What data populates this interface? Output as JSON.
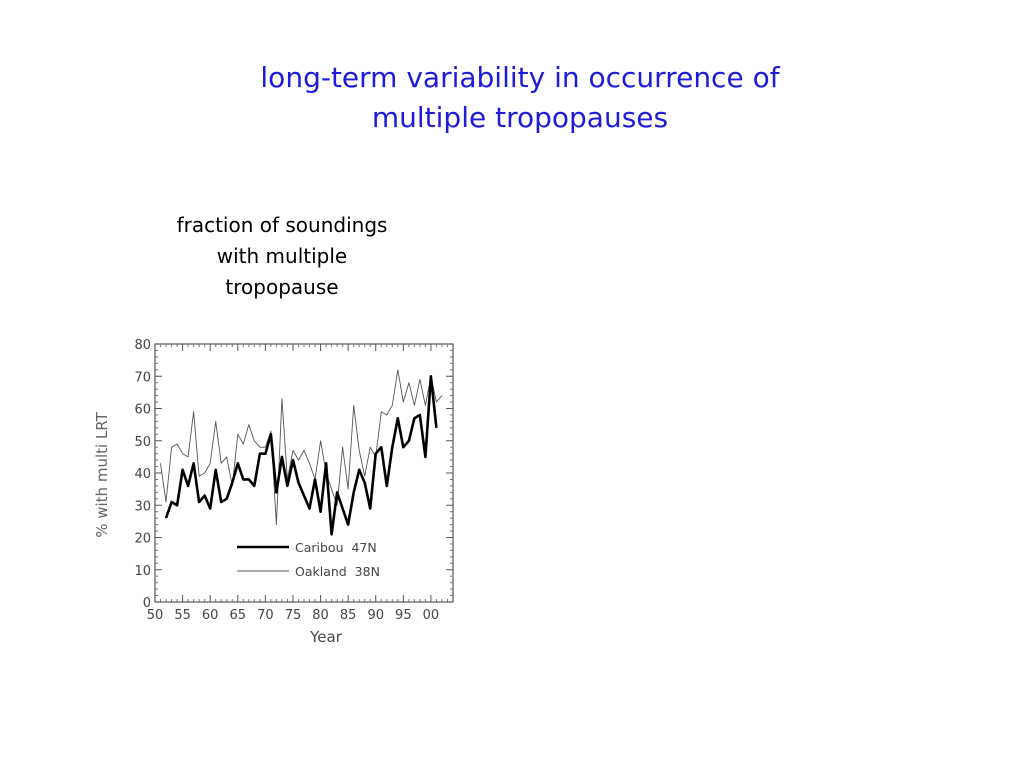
{
  "slide": {
    "title_line1": "long-term variability in occurrence of",
    "title_line2": "multiple tropopauses",
    "caption_line1": "fraction of soundings",
    "caption_line2": "with multiple",
    "caption_line3": "tropopause"
  },
  "chart_data": {
    "type": "line",
    "title": "",
    "xlabel": "Year",
    "ylabel": "% with multi LRT",
    "xlim": [
      1950,
      2004
    ],
    "ylim": [
      0,
      80
    ],
    "x_ticks": [
      1950,
      1955,
      1960,
      1965,
      1970,
      1975,
      1980,
      1985,
      1990,
      1995,
      2000
    ],
    "x_tick_labels": [
      "50",
      "55",
      "60",
      "65",
      "70",
      "75",
      "80",
      "85",
      "90",
      "95",
      "00"
    ],
    "y_ticks": [
      0,
      10,
      20,
      30,
      40,
      50,
      60,
      70,
      80
    ],
    "y_tick_labels": [
      "0",
      "10",
      "20",
      "30",
      "40",
      "50",
      "60",
      "70",
      "80"
    ],
    "legend_position": "bottom-center",
    "grid": false,
    "series": [
      {
        "name": "Caribou  47N",
        "color": "#000000",
        "style": "thick",
        "x": [
          1952,
          1953,
          1954,
          1955,
          1956,
          1957,
          1958,
          1959,
          1960,
          1961,
          1962,
          1963,
          1964,
          1965,
          1966,
          1967,
          1968,
          1969,
          1970,
          1971,
          1972,
          1973,
          1974,
          1975,
          1976,
          1977,
          1978,
          1979,
          1980,
          1981,
          1982,
          1983,
          1984,
          1985,
          1986,
          1987,
          1988,
          1989,
          1990,
          1991,
          1992,
          1993,
          1994,
          1995,
          1996,
          1997,
          1998,
          1999,
          2000,
          2001
        ],
        "values": [
          26,
          31,
          30,
          41,
          36,
          43,
          31,
          33,
          29,
          41,
          31,
          32,
          37,
          43,
          38,
          38,
          36,
          46,
          46,
          52,
          34,
          45,
          36,
          44,
          37,
          33,
          29,
          38,
          28,
          43,
          21,
          34,
          29,
          24,
          34,
          41,
          37,
          29,
          46,
          48,
          36,
          48,
          57,
          48,
          50,
          57,
          58,
          45,
          70,
          54
        ]
      },
      {
        "name": "Oakland  38N",
        "color": "#555555",
        "style": "thin",
        "x": [
          1951,
          1952,
          1953,
          1954,
          1955,
          1956,
          1957,
          1958,
          1959,
          1960,
          1961,
          1962,
          1963,
          1964,
          1965,
          1966,
          1967,
          1968,
          1969,
          1970,
          1971,
          1972,
          1973,
          1974,
          1975,
          1976,
          1977,
          1978,
          1979,
          1980,
          1981,
          1982,
          1983,
          1984,
          1985,
          1986,
          1987,
          1988,
          1989,
          1990,
          1991,
          1992,
          1993,
          1994,
          1995,
          1996,
          1997,
          1998,
          1999,
          2000,
          2001,
          2002
        ],
        "values": [
          43,
          31,
          48,
          49,
          46,
          45,
          59,
          39,
          40,
          43,
          56,
          43,
          45,
          36,
          52,
          49,
          55,
          50,
          48,
          48,
          53,
          24,
          63,
          38,
          47,
          44,
          47,
          43,
          38,
          50,
          40,
          35,
          30,
          48,
          35,
          61,
          47,
          39,
          48,
          45,
          59,
          58,
          61,
          72,
          62,
          68,
          61,
          69,
          61,
          70,
          62,
          64
        ]
      }
    ]
  }
}
